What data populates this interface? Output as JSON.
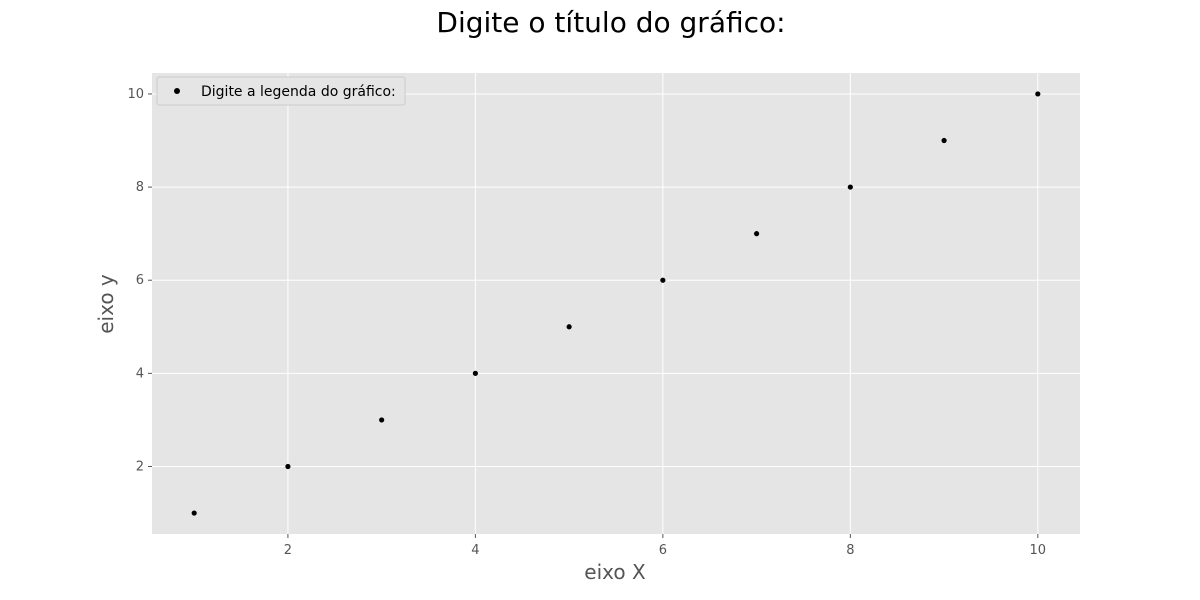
{
  "chart_data": {
    "type": "scatter",
    "title": "Digite o título do gráfico:",
    "xlabel": "eixo X",
    "ylabel": "eixo y",
    "xlim": [
      0.55,
      10.45
    ],
    "ylim": [
      0.55,
      10.45
    ],
    "xticks": [
      2,
      4,
      6,
      8,
      10
    ],
    "yticks": [
      2,
      4,
      6,
      8,
      10
    ],
    "grid": true,
    "legend_position": "top-left",
    "series": [
      {
        "name": "Digite a legenda do gráfico:",
        "color": "#000000",
        "points": [
          {
            "x": 1,
            "y": 1
          },
          {
            "x": 2,
            "y": 2
          },
          {
            "x": 3,
            "y": 3
          },
          {
            "x": 4,
            "y": 4
          },
          {
            "x": 5,
            "y": 5
          },
          {
            "x": 6,
            "y": 6
          },
          {
            "x": 7,
            "y": 7
          },
          {
            "x": 8,
            "y": 8
          },
          {
            "x": 9,
            "y": 9
          },
          {
            "x": 10,
            "y": 10
          }
        ]
      }
    ],
    "colors": {
      "plot_background": "#e5e5e5",
      "grid": "#ffffff",
      "tick_text": "#555555",
      "title_text": "#000000"
    }
  }
}
